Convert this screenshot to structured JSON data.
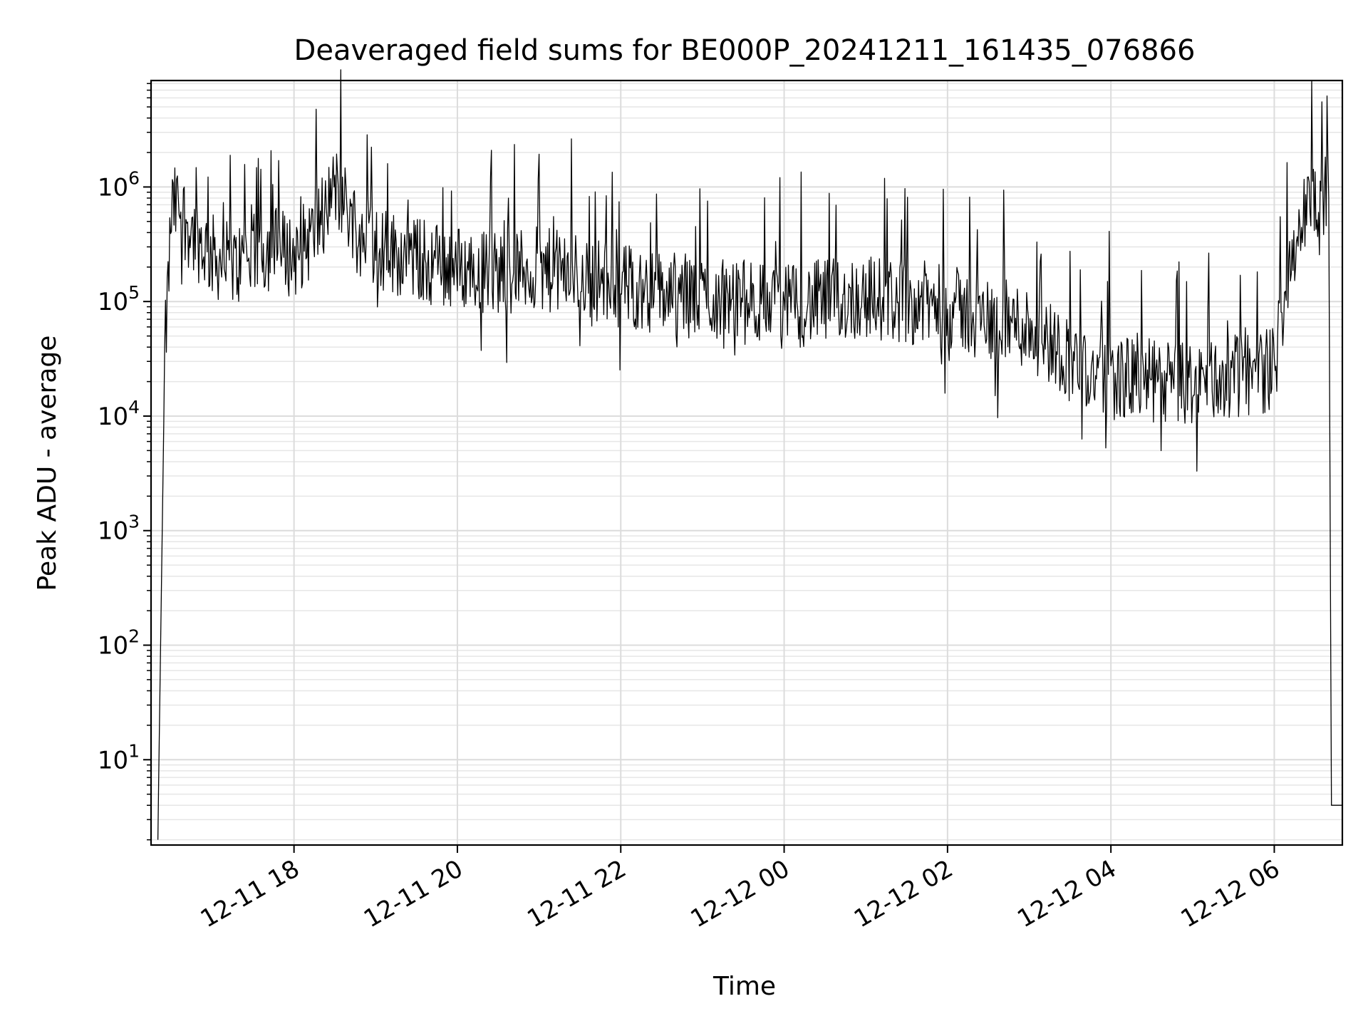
{
  "chart_data": {
    "type": "line",
    "title": "Deaveraged field sums for BE000P_20241211_161435_076866",
    "xlabel": "Time",
    "ylabel": "Peak ADU - average",
    "yscale": "log",
    "ylim": [
      1.8,
      8500000
    ],
    "xlim": [
      "2024-12-11 16:15",
      "2024-12-12 06:50"
    ],
    "grid": true,
    "legend": "none",
    "line_color": "#000000",
    "x_ticks": [
      "12-11 18",
      "12-11 20",
      "12-11 22",
      "12-12 00",
      "12-12 02",
      "12-12 04",
      "12-12 06"
    ],
    "x_tick_times": [
      "2024-12-11 18:00",
      "2024-12-11 20:00",
      "2024-12-11 22:00",
      "2024-12-12 00:00",
      "2024-12-12 02:00",
      "2024-12-12 04:00",
      "2024-12-12 06:00"
    ],
    "y_ticks": [
      {
        "base": "10",
        "exp": "1",
        "value": 10
      },
      {
        "base": "10",
        "exp": "2",
        "value": 100
      },
      {
        "base": "10",
        "exp": "3",
        "value": 1000
      },
      {
        "base": "10",
        "exp": "4",
        "value": 10000
      },
      {
        "base": "10",
        "exp": "5",
        "value": 100000
      },
      {
        "base": "10",
        "exp": "6",
        "value": 1000000
      }
    ],
    "series": [
      {
        "x": [
          "2024-12-11 16:20",
          "2024-12-11 16:25",
          "2024-12-11 16:30",
          "2024-12-11 16:35",
          "2024-12-11 16:45",
          "2024-12-11 17:00",
          "2024-12-11 17:15",
          "2024-12-11 17:30",
          "2024-12-11 17:45",
          "2024-12-11 18:00",
          "2024-12-11 18:15",
          "2024-12-11 18:30",
          "2024-12-11 18:45",
          "2024-12-11 19:00",
          "2024-12-11 19:20",
          "2024-12-11 19:40",
          "2024-12-11 20:00",
          "2024-12-11 20:30",
          "2024-12-11 21:00",
          "2024-12-11 21:30",
          "2024-12-11 22:00",
          "2024-12-11 22:30",
          "2024-12-11 23:00",
          "2024-12-11 23:30",
          "2024-12-12 00:00",
          "2024-12-12 00:30",
          "2024-12-12 01:00",
          "2024-12-12 01:30",
          "2024-12-12 02:00",
          "2024-12-12 02:30",
          "2024-12-12 03:00",
          "2024-12-12 03:20",
          "2024-12-12 03:40",
          "2024-12-12 04:00",
          "2024-12-12 04:30",
          "2024-12-12 05:00",
          "2024-12-12 05:30",
          "2024-12-12 06:00",
          "2024-12-12 06:10",
          "2024-12-12 06:20",
          "2024-12-12 06:30",
          "2024-12-12 06:40",
          "2024-12-12 06:42",
          "2024-12-12 06:50"
        ],
        "y": [
          2.0,
          30000,
          600000,
          700000,
          400000,
          250000,
          200000,
          250000,
          300000,
          250000,
          400000,
          1000000,
          500000,
          300000,
          250000,
          220000,
          200000,
          180000,
          190000,
          170000,
          140000,
          120000,
          110000,
          100000,
          90000,
          100000,
          110000,
          100000,
          90000,
          70000,
          60000,
          40000,
          25000,
          22000,
          20000,
          19000,
          22000,
          26000,
          200000,
          500000,
          800000,
          800000,
          4,
          4
        ]
      }
    ]
  }
}
